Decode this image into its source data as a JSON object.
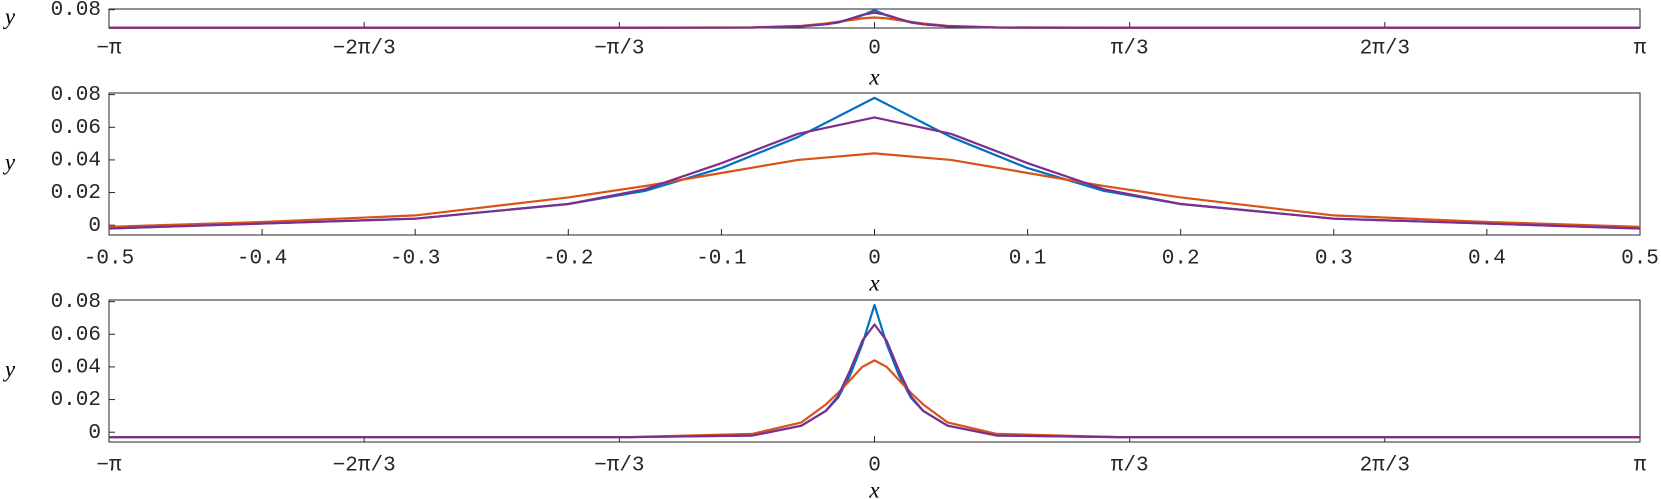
{
  "chart_data": [
    {
      "type": "line",
      "xlabel": "x",
      "ylabel": "y",
      "x": [
        -3.14159,
        -1.0,
        -0.5,
        -0.3,
        -0.2,
        -0.15,
        -0.1,
        -0.05,
        0,
        0.05,
        0.1,
        0.15,
        0.2,
        0.3,
        0.5,
        1.0,
        3.14159
      ],
      "series": [
        {
          "color": "#0072bd",
          "values": [
            -0.003,
            -0.003,
            -0.002,
            0.004,
            0.013,
            0.021,
            0.035,
            0.054,
            0.078,
            0.054,
            0.035,
            0.021,
            0.013,
            0.004,
            -0.002,
            -0.003,
            -0.003
          ]
        },
        {
          "color": "#d95319",
          "values": [
            -0.003,
            -0.003,
            -0.001,
            0.006,
            0.017,
            0.024,
            0.032,
            0.04,
            0.044,
            0.04,
            0.032,
            0.024,
            0.017,
            0.006,
            -0.001,
            -0.003,
            -0.003
          ]
        },
        {
          "color": "#7e2f8e",
          "values": [
            -0.003,
            -0.003,
            -0.002,
            0.004,
            0.013,
            0.022,
            0.038,
            0.056,
            0.066,
            0.056,
            0.038,
            0.022,
            0.013,
            0.004,
            -0.002,
            -0.003,
            -0.003
          ]
        }
      ],
      "xlim": [
        -3.14159,
        3.14159
      ],
      "ylim": [
        -0.004,
        0.083
      ],
      "xticks": [
        {
          "value": -3.14159,
          "label": "−π"
        },
        {
          "value": -2.0944,
          "label": "−2π/3"
        },
        {
          "value": -1.0472,
          "label": "−π/3"
        },
        0,
        {
          "value": 1.0472,
          "label": "π/3"
        },
        {
          "value": 2.0944,
          "label": "2π/3"
        },
        {
          "value": 3.14159,
          "label": "π"
        }
      ],
      "yticks": [
        0.08
      ],
      "grid": false
    },
    {
      "type": "line",
      "xlabel": "x",
      "ylabel": "y",
      "x": [
        -0.5,
        -0.4,
        -0.3,
        -0.2,
        -0.15,
        -0.1,
        -0.05,
        0,
        0.05,
        0.1,
        0.15,
        0.2,
        0.3,
        0.4,
        0.5
      ],
      "series": [
        {
          "color": "#0072bd",
          "values": [
            -0.002,
            0.001,
            0.004,
            0.013,
            0.021,
            0.035,
            0.054,
            0.078,
            0.054,
            0.035,
            0.021,
            0.013,
            0.004,
            0.001,
            -0.002
          ]
        },
        {
          "color": "#d95319",
          "values": [
            -0.001,
            0.002,
            0.006,
            0.017,
            0.024,
            0.032,
            0.04,
            0.044,
            0.04,
            0.032,
            0.024,
            0.017,
            0.006,
            0.002,
            -0.001
          ]
        },
        {
          "color": "#7e2f8e",
          "values": [
            -0.002,
            0.001,
            0.004,
            0.013,
            0.022,
            0.038,
            0.056,
            0.066,
            0.056,
            0.038,
            0.022,
            0.013,
            0.004,
            0.001,
            -0.002
          ]
        }
      ],
      "xlim": [
        -0.5,
        0.5
      ],
      "ylim": [
        -0.006,
        0.081
      ],
      "xticks": [
        -0.5,
        -0.4,
        -0.3,
        -0.2,
        -0.1,
        0,
        0.1,
        0.2,
        0.3,
        0.4,
        0.5
      ],
      "yticks": [
        0,
        0.02,
        0.04,
        0.06,
        0.08
      ],
      "grid": false
    },
    {
      "type": "line",
      "xlabel": "x",
      "ylabel": "y",
      "x": [
        -3.14159,
        -1.0,
        -0.5,
        -0.3,
        -0.2,
        -0.15,
        -0.1,
        -0.05,
        0,
        0.05,
        0.1,
        0.15,
        0.2,
        0.3,
        0.5,
        1.0,
        3.14159
      ],
      "series": [
        {
          "color": "#0072bd",
          "values": [
            -0.003,
            -0.003,
            -0.002,
            0.004,
            0.013,
            0.021,
            0.035,
            0.054,
            0.078,
            0.054,
            0.035,
            0.021,
            0.013,
            0.004,
            -0.002,
            -0.003,
            -0.003
          ]
        },
        {
          "color": "#d95319",
          "values": [
            -0.003,
            -0.003,
            -0.001,
            0.006,
            0.017,
            0.024,
            0.032,
            0.04,
            0.044,
            0.04,
            0.032,
            0.024,
            0.017,
            0.006,
            -0.001,
            -0.003,
            -0.003
          ]
        },
        {
          "color": "#7e2f8e",
          "values": [
            -0.003,
            -0.003,
            -0.002,
            0.004,
            0.013,
            0.022,
            0.038,
            0.056,
            0.066,
            0.056,
            0.038,
            0.022,
            0.013,
            0.004,
            -0.002,
            -0.003,
            -0.003
          ]
        }
      ],
      "xlim": [
        -3.14159,
        3.14159
      ],
      "ylim": [
        -0.006,
        0.081
      ],
      "xticks": [
        {
          "value": -3.14159,
          "label": "−π"
        },
        {
          "value": -2.0944,
          "label": "−2π/3"
        },
        {
          "value": -1.0472,
          "label": "−π/3"
        },
        0,
        {
          "value": 1.0472,
          "label": "π/3"
        },
        {
          "value": 2.0944,
          "label": "2π/3"
        },
        {
          "value": 3.14159,
          "label": "π"
        }
      ],
      "yticks": [
        0,
        0.02,
        0.04,
        0.06,
        0.08
      ],
      "grid": false
    }
  ]
}
